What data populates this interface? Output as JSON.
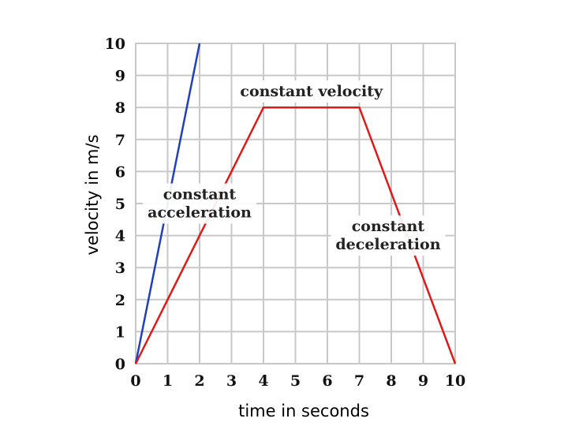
{
  "chart_data": {
    "type": "line",
    "xlabel": "time in seconds",
    "ylabel": "velocity in m/s",
    "xlim": [
      0,
      10
    ],
    "ylim": [
      0,
      10
    ],
    "grid": true,
    "x_ticks": [
      "0",
      "1",
      "2",
      "3",
      "4",
      "5",
      "6",
      "7",
      "8",
      "9",
      "10"
    ],
    "y_ticks": [
      "0",
      "1",
      "2",
      "3",
      "4",
      "5",
      "6",
      "7",
      "8",
      "9",
      "10"
    ],
    "series": [
      {
        "color": "#1f3fbf",
        "x": [
          0,
          2
        ],
        "y": [
          0,
          10
        ]
      },
      {
        "color": "#e01818",
        "x": [
          0,
          4,
          7,
          10
        ],
        "y": [
          0,
          8,
          8,
          0
        ]
      }
    ],
    "annotations": [
      {
        "lines": [
          "constant velocity"
        ],
        "x": 5.5,
        "y": 8.5
      },
      {
        "lines": [
          "constant",
          "acceleration"
        ],
        "x": 2.0,
        "y": 5.0
      },
      {
        "lines": [
          "constant",
          "deceleration"
        ],
        "x": 7.9,
        "y": 4.0
      }
    ]
  }
}
